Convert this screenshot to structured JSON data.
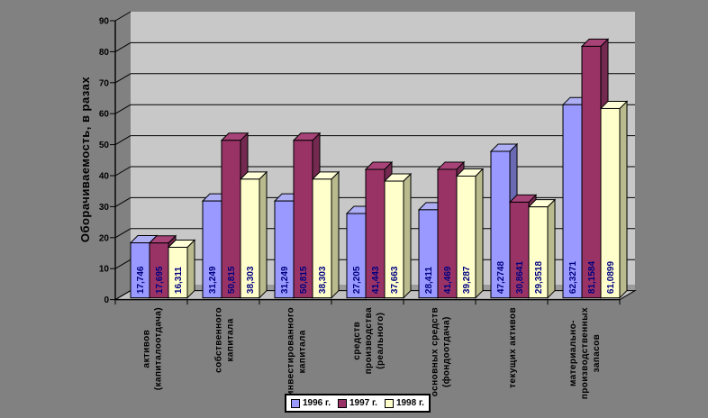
{
  "background_color": "#818181",
  "plot": {
    "wall_color": "#C8C8C8",
    "floor_color": "#C2C2C2",
    "floor_back_shade_color": "#9B9B9B",
    "grid_color": "#000000",
    "axis_color": "#000000",
    "data_label_color": "#000080",
    "legend_background": "#FFFFFF"
  },
  "y_axis": {
    "title": "Оборачиваемость, в разах",
    "min": 0,
    "max": 90,
    "step": 10,
    "tick_labels": [
      "0",
      "10",
      "20",
      "30",
      "40",
      "50",
      "60",
      "70",
      "80",
      "90"
    ]
  },
  "chart_data": {
    "type": "bar",
    "view": "3d-column",
    "title": "",
    "xlabel": "",
    "ylabel": "Оборачиваемость, в разах",
    "ylim": [
      0,
      90
    ],
    "grid": true,
    "legend_position": "bottom",
    "categories": [
      {
        "label": "активов (капиталоотдача)",
        "lines": [
          "активов",
          "(капиталоотдача)"
        ]
      },
      {
        "label": "собственного капитала",
        "lines": [
          "собственного",
          "капитала"
        ]
      },
      {
        "label": "инвестированного капитала",
        "lines": [
          "инвестированного",
          "капитала"
        ]
      },
      {
        "label": "средств производства (реального)",
        "lines": [
          "средств",
          "производства",
          "(реального)"
        ]
      },
      {
        "label": "основных средств (фондоотдача)",
        "lines": [
          "основных средств",
          "(фондоотдача)"
        ]
      },
      {
        "label": "текущих активов",
        "lines": [
          "текущих активов"
        ]
      },
      {
        "label": "материально-производственных запасов",
        "lines": [
          "материально-",
          "производственных",
          "запасов"
        ]
      }
    ],
    "series": [
      {
        "name": "1996 г.",
        "color": "#9999FF",
        "top_color": "#AEAEF5",
        "side_color": "#6A6AB4",
        "values": [
          17.746,
          31.249,
          31.249,
          27.205,
          28.411,
          47.2748,
          62.3271
        ],
        "labels": [
          "17,746",
          "31,249",
          "31,249",
          "27,205",
          "28,411",
          "47,2748",
          "62,3271"
        ]
      },
      {
        "name": "1997 г.",
        "color": "#993366",
        "top_color": "#A84378",
        "side_color": "#742A50",
        "values": [
          17.695,
          50.815,
          50.815,
          41.443,
          41.469,
          30.8641,
          81.1584
        ],
        "labels": [
          "17,695",
          "50,815",
          "50,815",
          "41,443",
          "41,469",
          "30,8641",
          "81,1584"
        ]
      },
      {
        "name": "1998 г.",
        "color": "#FFFFCC",
        "top_color": "#FFFFD8",
        "side_color": "#B9BA8D",
        "values": [
          16.311,
          38.303,
          38.303,
          37.663,
          39.287,
          29.3518,
          61.0899
        ],
        "labels": [
          "16,311",
          "38,303",
          "38,303",
          "37,663",
          "39,287",
          "29,3518",
          "61,0899"
        ]
      }
    ]
  }
}
